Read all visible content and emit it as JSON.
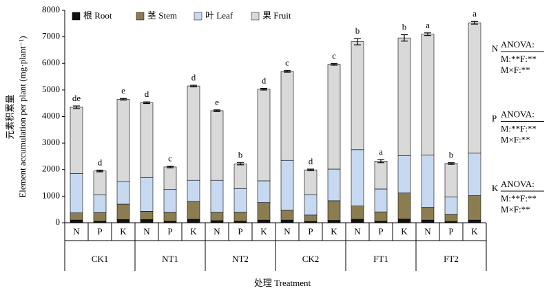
{
  "chart_data": {
    "type": "stacked_bar",
    "y_label": [
      "元素积累量",
      "Element accumulation per plant (mg·plant⁻¹)"
    ],
    "x_label": "处理 Treatment",
    "groups": [
      "CK1",
      "NT1",
      "NT2",
      "CK2",
      "FT1",
      "FT2"
    ],
    "subcategories": [
      "N",
      "P",
      "K"
    ],
    "ylim": [
      0,
      8000
    ],
    "yticks": [
      0,
      1000,
      2000,
      3000,
      4000,
      5000,
      6000,
      7000,
      8000
    ],
    "series": [
      {
        "name": "根 Root",
        "color": "#111111",
        "values": [
          100,
          60,
          120,
          120,
          60,
          130,
          80,
          60,
          100,
          100,
          50,
          90,
          130,
          60,
          140,
          100,
          50,
          100
        ]
      },
      {
        "name": "茎 Stem",
        "color": "#8b7d50",
        "values": [
          270,
          320,
          580,
          310,
          330,
          670,
          310,
          340,
          660,
          370,
          240,
          740,
          500,
          350,
          980,
          480,
          270,
          920
        ]
      },
      {
        "name": "叶 Leaf",
        "color": "#c6d9f1",
        "values": [
          1480,
          670,
          850,
          1270,
          860,
          800,
          1210,
          880,
          820,
          1880,
          770,
          1190,
          2120,
          860,
          1410,
          1970,
          650,
          1600
        ]
      },
      {
        "name": "果 Fruit",
        "color": "#d9d9d9",
        "values": [
          2500,
          900,
          3100,
          2820,
          850,
          3550,
          2620,
          940,
          3450,
          3350,
          930,
          3940,
          4070,
          1050,
          4430,
          4550,
          1260,
          4910
        ]
      }
    ],
    "errors": [
      50,
      30,
      30,
      30,
      30,
      30,
      30,
      40,
      30,
      30,
      30,
      30,
      120,
      60,
      120,
      50,
      30,
      50
    ],
    "annotations": [
      "de",
      "d",
      "e",
      "d",
      "c",
      "d",
      "e",
      "b",
      "d",
      "c",
      "d",
      "c",
      "b",
      "a",
      "b",
      "a",
      "b",
      "a"
    ],
    "anova": [
      {
        "label": "N",
        "lines": [
          "ANOVA:",
          "M:**F:**",
          "M×F:**"
        ]
      },
      {
        "label": "P",
        "lines": [
          "ANOVA:",
          "M:**F:**",
          "M×F:**"
        ]
      },
      {
        "label": "K",
        "lines": [
          "ANOVA:",
          "M:**F:**",
          "M×F:**"
        ]
      }
    ]
  }
}
